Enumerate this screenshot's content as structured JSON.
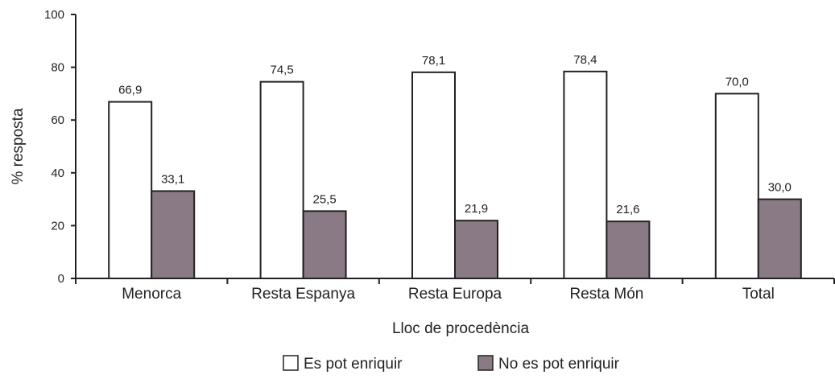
{
  "chart_data": {
    "type": "bar",
    "title": "",
    "xlabel": "Lloc de procedència",
    "ylabel": "% resposta",
    "ylim": [
      0,
      100
    ],
    "yticks": [
      "0",
      "20",
      "40",
      "60",
      "80",
      "100"
    ],
    "categories": [
      "Menorca",
      "Resta Espanya",
      "Resta Europa",
      "Resta Món",
      "Total"
    ],
    "series": [
      {
        "name": "Es pot enriquir",
        "color": "#ffffff",
        "values": [
          66.9,
          74.5,
          78.1,
          78.4,
          70.0
        ],
        "labels": [
          "66,9",
          "74,5",
          "78,1",
          "78,4",
          "70,0"
        ]
      },
      {
        "name": "No es pot enriquir",
        "color": "#8a7a86",
        "values": [
          33.1,
          25.5,
          21.9,
          21.6,
          30.0
        ],
        "labels": [
          "33,1",
          "25,5",
          "21,9",
          "21,6",
          "30,0"
        ]
      }
    ],
    "grid": false,
    "legend": "bottom"
  }
}
